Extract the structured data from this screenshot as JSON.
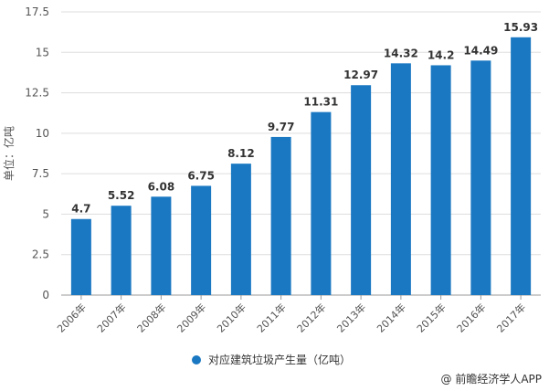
{
  "chart_data": {
    "type": "bar",
    "categories": [
      "2006年",
      "2007年",
      "2008年",
      "2009年",
      "2010年",
      "2011年",
      "2012年",
      "2013年",
      "2014年",
      "2015年",
      "2016年",
      "2017年"
    ],
    "series": [
      {
        "name": "对应建筑垃圾产生量（亿吨）",
        "values": [
          4.7,
          5.52,
          6.08,
          6.75,
          8.12,
          9.77,
          11.31,
          12.97,
          14.32,
          14.2,
          14.49,
          15.93
        ]
      }
    ],
    "ylabel": "单位：亿吨",
    "ylim": [
      0,
      17.5
    ],
    "yticks": [
      "0",
      "2.5",
      "5",
      "7.5",
      "10",
      "12.5",
      "15",
      "17.5"
    ],
    "grid": true,
    "legend_position": "bottom",
    "color": "#1a78c2"
  },
  "credit": "@ 前瞻经济学人APP"
}
